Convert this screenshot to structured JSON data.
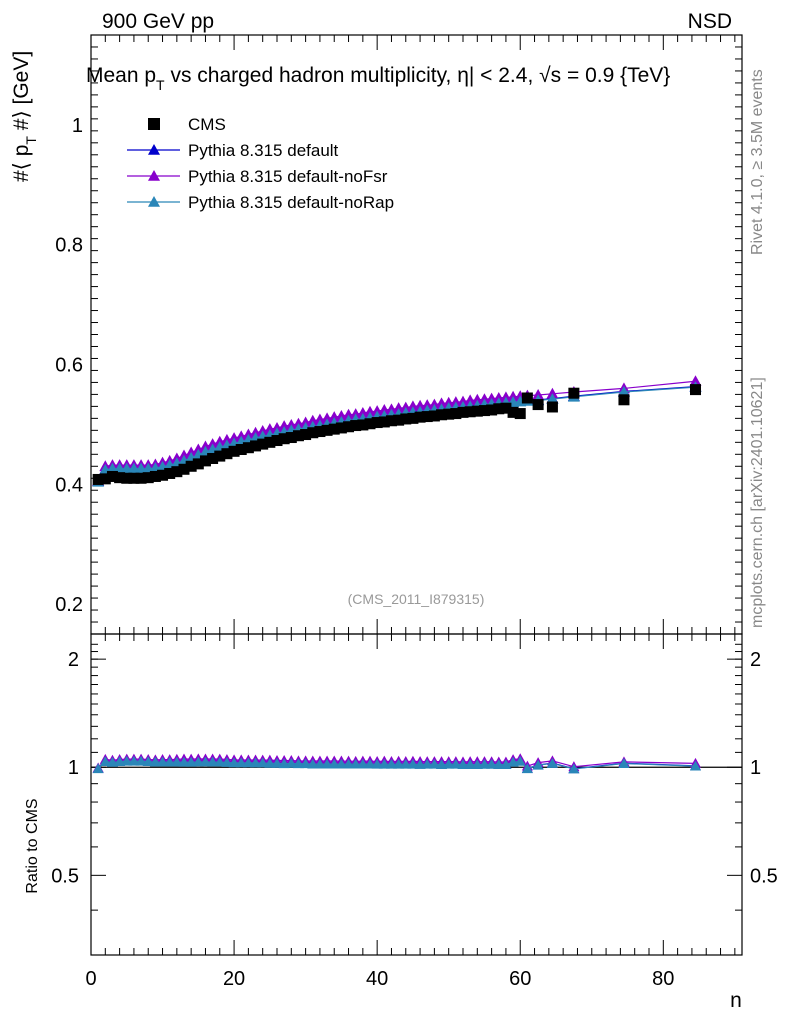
{
  "header": {
    "left": "900 GeV pp",
    "right": "NSD"
  },
  "side_labels": {
    "rivet": "Rivet 4.1.0, ≥ 3.5M events",
    "mcplots": "mcplots.cern.ch [arXiv:2401.10621]"
  },
  "chart_data": [
    {
      "type": "scatter",
      "title": "Mean p_T vs charged hadron multiplicity, |η| < 2.4, √s = 0.9 {TeV}",
      "title_parts": {
        "main": "Mean p",
        "sub": "T",
        "rest": " vs charged hadron multiplicity, ",
        "eta": "η| < 2.4, ",
        "sqrt": "√s = 0.9 {TeV}"
      },
      "ylabel_parts": {
        "a": "#⟨ p",
        "sub": "T",
        "b": " #⟩ [GeV]"
      },
      "xlabel": "",
      "xlim": [
        0,
        91
      ],
      "ylim": [
        0.15,
        1.15
      ],
      "yticks": [
        0.2,
        0.4,
        0.6,
        0.8,
        1
      ],
      "ytick_labels": [
        "0.2",
        "0.4",
        "0.6",
        "0.8",
        "1"
      ],
      "analysis": "(CMS_2011_I879315)",
      "legend_position": "top-left",
      "series": [
        {
          "name": "CMS",
          "color": "#000000",
          "marker": "square",
          "x": [
            1,
            2,
            3,
            4,
            5,
            6,
            7,
            8,
            9,
            10,
            11,
            12,
            13,
            14,
            15,
            16,
            17,
            18,
            19,
            20,
            21,
            22,
            23,
            24,
            25,
            26,
            27,
            28,
            29,
            30,
            31,
            32,
            33,
            34,
            35,
            36,
            37,
            38,
            39,
            40,
            41,
            42,
            43,
            44,
            45,
            46,
            47,
            48,
            49,
            50,
            51,
            52,
            53,
            54,
            55,
            56,
            57,
            58,
            59,
            60,
            61,
            62.5,
            64.5,
            67.5,
            74.5,
            84.5
          ],
          "y": [
            0.408,
            0.409,
            0.413,
            0.411,
            0.41,
            0.41,
            0.41,
            0.411,
            0.413,
            0.415,
            0.418,
            0.421,
            0.425,
            0.43,
            0.434,
            0.439,
            0.443,
            0.447,
            0.451,
            0.455,
            0.458,
            0.461,
            0.464,
            0.467,
            0.47,
            0.473,
            0.476,
            0.478,
            0.481,
            0.483,
            0.486,
            0.488,
            0.49,
            0.492,
            0.494,
            0.496,
            0.498,
            0.499,
            0.501,
            0.503,
            0.504,
            0.506,
            0.507,
            0.509,
            0.51,
            0.512,
            0.513,
            0.514,
            0.516,
            0.517,
            0.518,
            0.52,
            0.521,
            0.522,
            0.523,
            0.524,
            0.526,
            0.527,
            0.52,
            0.518,
            0.544,
            0.533,
            0.529,
            0.552,
            0.541,
            0.558
          ]
        },
        {
          "name": "Pythia 8.315 default",
          "color": "#0000cc",
          "marker": "triangle",
          "x": [
            1,
            2,
            3,
            4,
            5,
            6,
            7,
            8,
            9,
            10,
            11,
            12,
            13,
            14,
            15,
            16,
            17,
            18,
            19,
            20,
            21,
            22,
            23,
            24,
            25,
            26,
            27,
            28,
            29,
            30,
            31,
            32,
            33,
            34,
            35,
            36,
            37,
            38,
            39,
            40,
            41,
            42,
            43,
            44,
            45,
            46,
            47,
            48,
            49,
            50,
            51,
            52,
            53,
            54,
            55,
            56,
            57,
            58,
            59,
            60,
            61,
            62.5,
            64.5,
            67.5,
            74.5,
            84.5
          ],
          "y": [
            0.405,
            0.425,
            0.427,
            0.427,
            0.427,
            0.427,
            0.427,
            0.427,
            0.428,
            0.43,
            0.433,
            0.436,
            0.44,
            0.445,
            0.45,
            0.455,
            0.459,
            0.463,
            0.466,
            0.469,
            0.472,
            0.475,
            0.478,
            0.481,
            0.483,
            0.486,
            0.488,
            0.491,
            0.493,
            0.495,
            0.497,
            0.499,
            0.501,
            0.503,
            0.505,
            0.507,
            0.509,
            0.51,
            0.512,
            0.514,
            0.515,
            0.517,
            0.518,
            0.52,
            0.521,
            0.522,
            0.524,
            0.525,
            0.526,
            0.528,
            0.529,
            0.53,
            0.531,
            0.532,
            0.534,
            0.535,
            0.536,
            0.537,
            0.538,
            0.539,
            0.54,
            0.541,
            0.543,
            0.547,
            0.555,
            0.563
          ]
        },
        {
          "name": "Pythia 8.315 default-noFsr",
          "color": "#8800cc",
          "marker": "triangle",
          "x": [
            1,
            2,
            3,
            4,
            5,
            6,
            7,
            8,
            9,
            10,
            11,
            12,
            13,
            14,
            15,
            16,
            17,
            18,
            19,
            20,
            21,
            22,
            23,
            24,
            25,
            26,
            27,
            28,
            29,
            30,
            31,
            32,
            33,
            34,
            35,
            36,
            37,
            38,
            39,
            40,
            41,
            42,
            43,
            44,
            45,
            46,
            47,
            48,
            49,
            50,
            51,
            52,
            53,
            54,
            55,
            56,
            57,
            58,
            59,
            60,
            61,
            62.5,
            64.5,
            67.5,
            74.5,
            84.5
          ],
          "y": [
            0.406,
            0.43,
            0.432,
            0.432,
            0.432,
            0.432,
            0.432,
            0.432,
            0.433,
            0.436,
            0.439,
            0.443,
            0.448,
            0.453,
            0.458,
            0.463,
            0.467,
            0.471,
            0.474,
            0.477,
            0.48,
            0.483,
            0.486,
            0.489,
            0.492,
            0.494,
            0.497,
            0.499,
            0.501,
            0.503,
            0.506,
            0.508,
            0.51,
            0.512,
            0.514,
            0.516,
            0.517,
            0.519,
            0.521,
            0.522,
            0.524,
            0.525,
            0.527,
            0.528,
            0.53,
            0.531,
            0.532,
            0.533,
            0.535,
            0.536,
            0.537,
            0.538,
            0.54,
            0.541,
            0.542,
            0.543,
            0.544,
            0.545,
            0.546,
            0.547,
            0.548,
            0.549,
            0.551,
            0.554,
            0.56,
            0.572
          ]
        },
        {
          "name": "Pythia 8.315 default-noRap",
          "color": "#2a86b8",
          "marker": "triangle",
          "x": [
            1,
            2,
            3,
            4,
            5,
            6,
            7,
            8,
            9,
            10,
            11,
            12,
            13,
            14,
            15,
            16,
            17,
            18,
            19,
            20,
            21,
            22,
            23,
            24,
            25,
            26,
            27,
            28,
            29,
            30,
            31,
            32,
            33,
            34,
            35,
            36,
            37,
            38,
            39,
            40,
            41,
            42,
            43,
            44,
            45,
            46,
            47,
            48,
            49,
            50,
            51,
            52,
            53,
            54,
            55,
            56,
            57,
            58,
            59,
            60,
            61,
            62.5,
            64.5,
            67.5,
            74.5,
            84.5
          ],
          "y": [
            0.404,
            0.424,
            0.426,
            0.426,
            0.426,
            0.426,
            0.426,
            0.426,
            0.427,
            0.429,
            0.432,
            0.435,
            0.439,
            0.444,
            0.449,
            0.454,
            0.458,
            0.462,
            0.465,
            0.468,
            0.471,
            0.474,
            0.477,
            0.48,
            0.482,
            0.485,
            0.487,
            0.49,
            0.492,
            0.494,
            0.496,
            0.498,
            0.5,
            0.502,
            0.504,
            0.506,
            0.508,
            0.509,
            0.511,
            0.513,
            0.514,
            0.516,
            0.517,
            0.519,
            0.52,
            0.521,
            0.523,
            0.524,
            0.525,
            0.527,
            0.528,
            0.529,
            0.53,
            0.531,
            0.533,
            0.534,
            0.535,
            0.536,
            0.537,
            0.538,
            0.539,
            0.54,
            0.542,
            0.546,
            0.554,
            0.562
          ]
        }
      ]
    },
    {
      "type": "line",
      "ylabel": "Ratio to CMS",
      "xlabel": "n",
      "xlim": [
        0,
        91
      ],
      "ylim": [
        0.3,
        2.35
      ],
      "xticks": [
        0,
        20,
        40,
        60,
        80
      ],
      "xtick_labels": [
        "0",
        "20",
        "40",
        "60",
        "80"
      ],
      "yticks": [
        0.5,
        1,
        2
      ],
      "ytick_labels": [
        "0.5",
        "1",
        "2"
      ],
      "reference": 1
    }
  ]
}
